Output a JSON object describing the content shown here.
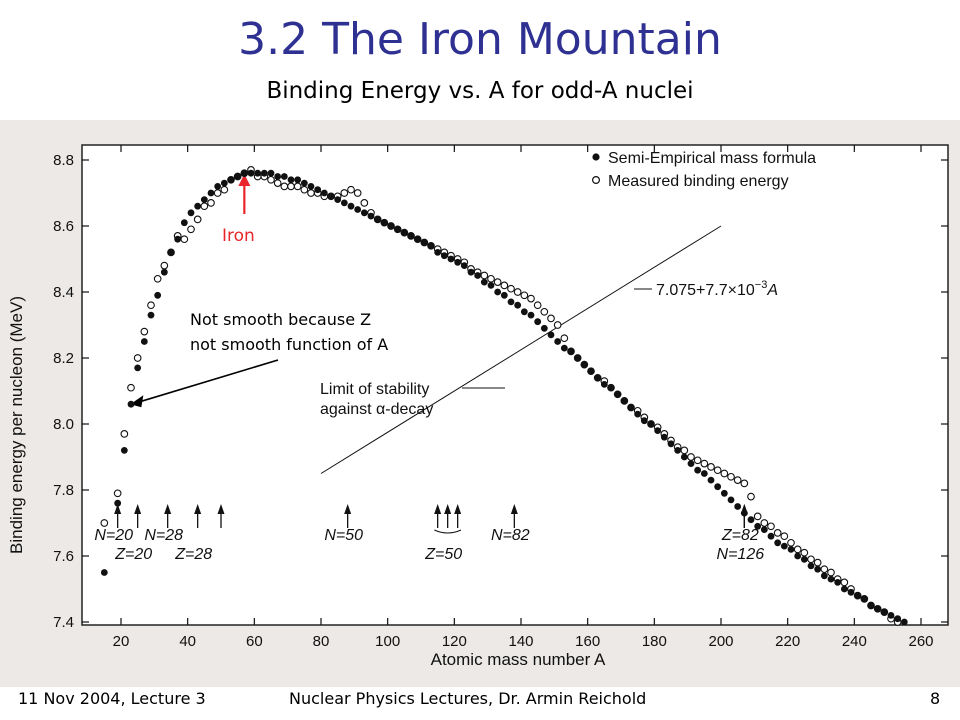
{
  "slide": {
    "title": "3.2 The Iron Mountain",
    "subtitle": "Binding Energy vs. A for odd-A nuclei",
    "footer_left": "11 Nov 2004, Lecture 3",
    "footer_center": "Nuclear Physics  Lectures, Dr. Armin Reichold",
    "page_number": "8"
  },
  "colors": {
    "title": "#2e3192",
    "iron_marker": "#e8262b",
    "plot_ink": "#111111",
    "scan_background": "#ece9e7"
  },
  "chart_data": {
    "type": "scatter",
    "xlabel": "Atomic mass number A",
    "ylabel": "Binding energy per nucleon (MeV)",
    "xlim": [
      10,
      265
    ],
    "ylim": [
      7.4,
      8.9
    ],
    "x_ticks": [
      20,
      40,
      60,
      80,
      100,
      120,
      140,
      160,
      180,
      200,
      220,
      240,
      260
    ],
    "y_ticks": [
      "7.4",
      "7.6",
      "7.8",
      "8.0",
      "8.2",
      "8.4",
      "8.6",
      "8.8"
    ],
    "grid": false,
    "legend_position": "top-right",
    "series": [
      {
        "name": "Semi-Empirical mass formula",
        "marker": "filled-circle",
        "points": [
          [
            15,
            7.55
          ],
          [
            19,
            7.76
          ],
          [
            21,
            7.92
          ],
          [
            23,
            8.06
          ],
          [
            25,
            8.17
          ],
          [
            27,
            8.25
          ],
          [
            29,
            8.33
          ],
          [
            31,
            8.39
          ],
          [
            33,
            8.46
          ],
          [
            35,
            8.52
          ],
          [
            37,
            8.56
          ],
          [
            39,
            8.61
          ],
          [
            41,
            8.64
          ],
          [
            43,
            8.66
          ],
          [
            45,
            8.68
          ],
          [
            47,
            8.7
          ],
          [
            49,
            8.72
          ],
          [
            51,
            8.73
          ],
          [
            53,
            8.74
          ],
          [
            55,
            8.75
          ],
          [
            57,
            8.76
          ],
          [
            59,
            8.76
          ],
          [
            61,
            8.76
          ],
          [
            63,
            8.76
          ],
          [
            65,
            8.76
          ],
          [
            67,
            8.75
          ],
          [
            69,
            8.75
          ],
          [
            71,
            8.74
          ],
          [
            73,
            8.74
          ],
          [
            75,
            8.73
          ],
          [
            77,
            8.72
          ],
          [
            79,
            8.71
          ],
          [
            81,
            8.7
          ],
          [
            83,
            8.69
          ],
          [
            85,
            8.68
          ],
          [
            87,
            8.67
          ],
          [
            89,
            8.66
          ],
          [
            91,
            8.65
          ],
          [
            93,
            8.64
          ],
          [
            95,
            8.63
          ],
          [
            97,
            8.62
          ],
          [
            99,
            8.61
          ],
          [
            101,
            8.6
          ],
          [
            103,
            8.59
          ],
          [
            105,
            8.58
          ],
          [
            107,
            8.57
          ],
          [
            109,
            8.56
          ],
          [
            111,
            8.55
          ],
          [
            113,
            8.54
          ],
          [
            115,
            8.52
          ],
          [
            117,
            8.51
          ],
          [
            119,
            8.5
          ],
          [
            121,
            8.49
          ],
          [
            123,
            8.48
          ],
          [
            125,
            8.46
          ],
          [
            127,
            8.45
          ],
          [
            129,
            8.43
          ],
          [
            131,
            8.42
          ],
          [
            133,
            8.4
          ],
          [
            135,
            8.39
          ],
          [
            137,
            8.37
          ],
          [
            139,
            8.36
          ],
          [
            141,
            8.34
          ],
          [
            143,
            8.33
          ],
          [
            145,
            8.31
          ],
          [
            147,
            8.29
          ],
          [
            149,
            8.27
          ],
          [
            151,
            8.25
          ],
          [
            153,
            8.23
          ],
          [
            155,
            8.22
          ],
          [
            157,
            8.2
          ],
          [
            159,
            8.18
          ],
          [
            161,
            8.16
          ],
          [
            163,
            8.14
          ],
          [
            165,
            8.12
          ],
          [
            167,
            8.11
          ],
          [
            169,
            8.09
          ],
          [
            171,
            8.07
          ],
          [
            173,
            8.05
          ],
          [
            175,
            8.03
          ],
          [
            177,
            8.01
          ],
          [
            179,
            8.0
          ],
          [
            181,
            7.98
          ],
          [
            183,
            7.96
          ],
          [
            185,
            7.94
          ],
          [
            187,
            7.92
          ],
          [
            189,
            7.9
          ],
          [
            191,
            7.88
          ],
          [
            193,
            7.86
          ],
          [
            195,
            7.85
          ],
          [
            197,
            7.83
          ],
          [
            199,
            7.81
          ],
          [
            201,
            7.79
          ],
          [
            203,
            7.77
          ],
          [
            205,
            7.75
          ],
          [
            207,
            7.73
          ],
          [
            209,
            7.71
          ],
          [
            211,
            7.69
          ],
          [
            213,
            7.68
          ],
          [
            215,
            7.66
          ],
          [
            217,
            7.64
          ],
          [
            219,
            7.63
          ],
          [
            221,
            7.62
          ],
          [
            223,
            7.6
          ],
          [
            225,
            7.59
          ],
          [
            227,
            7.57
          ],
          [
            229,
            7.56
          ],
          [
            231,
            7.54
          ],
          [
            233,
            7.53
          ],
          [
            235,
            7.52
          ],
          [
            237,
            7.5
          ],
          [
            239,
            7.49
          ],
          [
            241,
            7.48
          ],
          [
            243,
            7.47
          ],
          [
            245,
            7.45
          ],
          [
            247,
            7.44
          ],
          [
            249,
            7.43
          ],
          [
            251,
            7.42
          ],
          [
            253,
            7.41
          ],
          [
            255,
            7.4
          ]
        ]
      },
      {
        "name": "Measured binding energy",
        "marker": "open-circle",
        "points": [
          [
            15,
            7.7
          ],
          [
            19,
            7.79
          ],
          [
            21,
            7.97
          ],
          [
            23,
            8.11
          ],
          [
            25,
            8.2
          ],
          [
            27,
            8.28
          ],
          [
            29,
            8.36
          ],
          [
            31,
            8.44
          ],
          [
            33,
            8.48
          ],
          [
            35,
            8.52
          ],
          [
            37,
            8.57
          ],
          [
            39,
            8.56
          ],
          [
            41,
            8.59
          ],
          [
            43,
            8.62
          ],
          [
            45,
            8.66
          ],
          [
            47,
            8.67
          ],
          [
            49,
            8.7
          ],
          [
            51,
            8.71
          ],
          [
            53,
            8.74
          ],
          [
            55,
            8.75
          ],
          [
            57,
            8.76
          ],
          [
            59,
            8.77
          ],
          [
            61,
            8.75
          ],
          [
            63,
            8.75
          ],
          [
            65,
            8.74
          ],
          [
            67,
            8.73
          ],
          [
            69,
            8.72
          ],
          [
            71,
            8.72
          ],
          [
            73,
            8.72
          ],
          [
            75,
            8.71
          ],
          [
            77,
            8.7
          ],
          [
            79,
            8.7
          ],
          [
            81,
            8.69
          ],
          [
            83,
            8.69
          ],
          [
            85,
            8.69
          ],
          [
            87,
            8.7
          ],
          [
            89,
            8.71
          ],
          [
            91,
            8.7
          ],
          [
            93,
            8.67
          ],
          [
            95,
            8.64
          ],
          [
            97,
            8.62
          ],
          [
            99,
            8.61
          ],
          [
            101,
            8.6
          ],
          [
            103,
            8.59
          ],
          [
            105,
            8.58
          ],
          [
            107,
            8.57
          ],
          [
            109,
            8.56
          ],
          [
            111,
            8.55
          ],
          [
            113,
            8.54
          ],
          [
            115,
            8.53
          ],
          [
            117,
            8.52
          ],
          [
            119,
            8.51
          ],
          [
            121,
            8.5
          ],
          [
            123,
            8.49
          ],
          [
            125,
            8.47
          ],
          [
            127,
            8.46
          ],
          [
            129,
            8.45
          ],
          [
            131,
            8.44
          ],
          [
            133,
            8.43
          ],
          [
            135,
            8.42
          ],
          [
            137,
            8.41
          ],
          [
            139,
            8.4
          ],
          [
            141,
            8.39
          ],
          [
            143,
            8.38
          ],
          [
            145,
            8.36
          ],
          [
            147,
            8.34
          ],
          [
            149,
            8.32
          ],
          [
            151,
            8.3
          ],
          [
            153,
            8.26
          ],
          [
            155,
            8.22
          ],
          [
            157,
            8.2
          ],
          [
            159,
            8.18
          ],
          [
            161,
            8.16
          ],
          [
            163,
            8.14
          ],
          [
            165,
            8.13
          ],
          [
            167,
            8.11
          ],
          [
            169,
            8.09
          ],
          [
            171,
            8.07
          ],
          [
            173,
            8.05
          ],
          [
            175,
            8.04
          ],
          [
            177,
            8.02
          ],
          [
            179,
            8.0
          ],
          [
            181,
            7.99
          ],
          [
            183,
            7.97
          ],
          [
            185,
            7.95
          ],
          [
            187,
            7.93
          ],
          [
            189,
            7.92
          ],
          [
            191,
            7.9
          ],
          [
            193,
            7.89
          ],
          [
            195,
            7.88
          ],
          [
            197,
            7.87
          ],
          [
            199,
            7.86
          ],
          [
            201,
            7.85
          ],
          [
            203,
            7.84
          ],
          [
            205,
            7.83
          ],
          [
            207,
            7.82
          ],
          [
            209,
            7.78
          ],
          [
            211,
            7.72
          ],
          [
            213,
            7.7
          ],
          [
            215,
            7.69
          ],
          [
            217,
            7.67
          ],
          [
            219,
            7.66
          ],
          [
            221,
            7.64
          ],
          [
            223,
            7.62
          ],
          [
            225,
            7.61
          ],
          [
            227,
            7.59
          ],
          [
            229,
            7.58
          ],
          [
            231,
            7.56
          ],
          [
            233,
            7.55
          ],
          [
            235,
            7.53
          ],
          [
            237,
            7.52
          ],
          [
            239,
            7.5
          ],
          [
            241,
            7.48
          ],
          [
            243,
            7.47
          ],
          [
            245,
            7.45
          ],
          [
            247,
            7.44
          ],
          [
            249,
            7.43
          ],
          [
            251,
            7.41
          ],
          [
            253,
            7.4
          ]
        ]
      }
    ],
    "line": {
      "label_main": "7.075+7.7×10",
      "label_exp": "−3",
      "label_var": "A",
      "from": [
        80,
        7.85
      ],
      "to": [
        200,
        8.6
      ]
    },
    "limit_label": [
      "Limit of stability",
      "against α-decay"
    ],
    "callout": {
      "lines": [
        "Not smooth because Z",
        "not smooth function of A"
      ],
      "target": [
        21,
        8.06
      ]
    },
    "iron": {
      "label": "Iron",
      "x": 57
    },
    "magic_arrows": [
      {
        "x": 19,
        "label": "N=20",
        "row": 1
      },
      {
        "x": 25,
        "label": "Z=20",
        "row": 2
      },
      {
        "x": 34,
        "label": "N=28",
        "row": 1
      },
      {
        "x": 43,
        "label": "Z=28",
        "row": 2
      },
      {
        "x": 50,
        "label": "",
        "row": 0
      },
      {
        "x": 88,
        "label": "N=50",
        "row": 1
      },
      {
        "x": 115,
        "label": "",
        "row": 0
      },
      {
        "x": 118,
        "label": "Z=50",
        "row": 2
      },
      {
        "x": 121,
        "label": "",
        "row": 0
      },
      {
        "x": 138,
        "label": "N=82",
        "row": 1
      },
      {
        "x": 207,
        "label": "Z=82",
        "row": 1
      },
      {
        "x": 207,
        "label": "N=126",
        "row": 2
      }
    ]
  }
}
